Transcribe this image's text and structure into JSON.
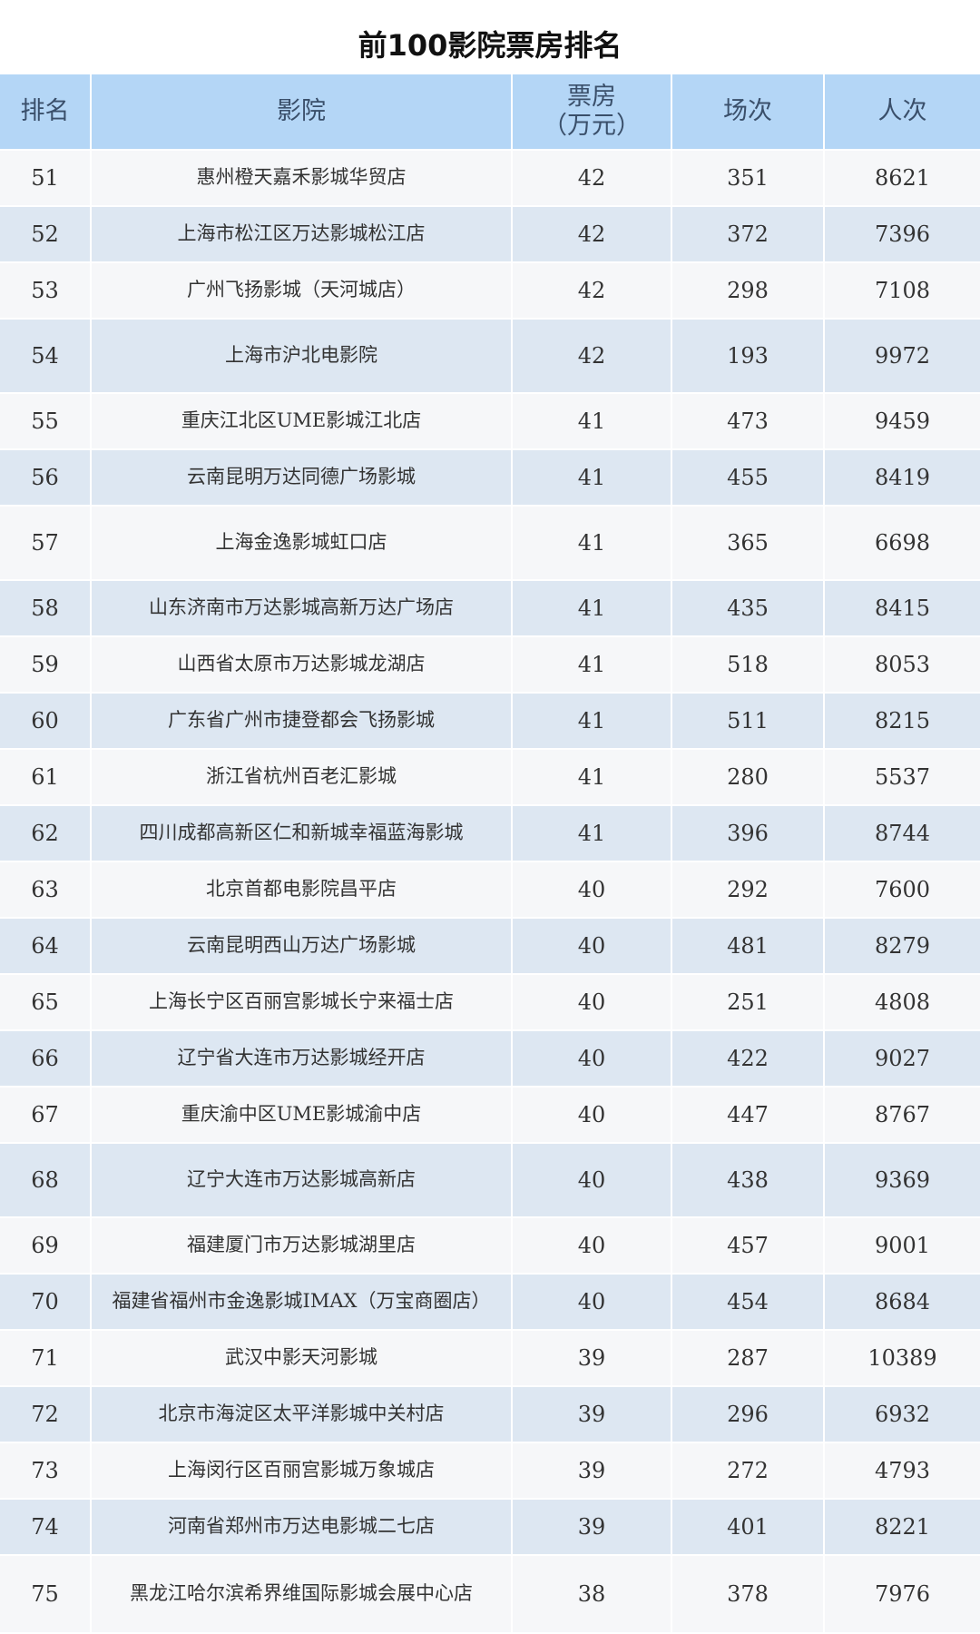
{
  "header": {
    "title": "前100影院票房排名"
  },
  "table": {
    "columns": [
      "排名",
      "影院",
      "票房\n（万元）",
      "场次",
      "人次"
    ],
    "rows": [
      [
        51,
        "惠州橙天嘉禾影城华贸店",
        42,
        351,
        8621
      ],
      [
        52,
        "上海市松江区万达影城松江店",
        42,
        372,
        7396
      ],
      [
        53,
        "广州飞扬影城（天河城店）",
        42,
        298,
        7108
      ],
      [
        54,
        "上海市沪北电影院",
        42,
        193,
        9972
      ],
      [
        55,
        "重庆江北区UME影城江北店",
        41,
        473,
        9459
      ],
      [
        56,
        "云南昆明万达同德广场影城",
        41,
        455,
        8419
      ],
      [
        57,
        "上海金逸影城虹口店",
        41,
        365,
        6698
      ],
      [
        58,
        "山东济南市万达影城高新万达广场店",
        41,
        435,
        8415
      ],
      [
        59,
        "山西省太原市万达影城龙湖店",
        41,
        518,
        8053
      ],
      [
        60,
        "广东省广州市捷登都会飞扬影城",
        41,
        511,
        8215
      ],
      [
        61,
        "浙江省杭州百老汇影城",
        41,
        280,
        5537
      ],
      [
        62,
        "四川成都高新区仁和新城幸福蓝海影城",
        41,
        396,
        8744
      ],
      [
        63,
        "北京首都电影院昌平店",
        40,
        292,
        7600
      ],
      [
        64,
        "云南昆明西山万达广场影城",
        40,
        481,
        8279
      ],
      [
        65,
        "上海长宁区百丽宫影城长宁来福士店",
        40,
        251,
        4808
      ],
      [
        66,
        "辽宁省大连市万达影城经开店",
        40,
        422,
        9027
      ],
      [
        67,
        "重庆渝中区UME影城渝中店",
        40,
        447,
        8767
      ],
      [
        68,
        "辽宁大连市万达影城高新店",
        40,
        438,
        9369
      ],
      [
        69,
        "福建厦门市万达影城湖里店",
        40,
        457,
        9001
      ],
      [
        70,
        "福建省福州市金逸影城IMAX（万宝商圈店）",
        40,
        454,
        8684
      ],
      [
        71,
        "武汉中影天河影城",
        39,
        287,
        10389
      ],
      [
        72,
        "北京市海淀区太平洋影城中关村店",
        39,
        296,
        6932
      ],
      [
        73,
        "上海闵行区百丽宫影城万象城店",
        39,
        272,
        4793
      ],
      [
        74,
        "河南省郑州市万达电影城二七店",
        39,
        401,
        8221
      ],
      [
        75,
        "黑龙江哈尔滨希界维国际影城会展中心店",
        38,
        378,
        7976
      ]
    ]
  }
}
